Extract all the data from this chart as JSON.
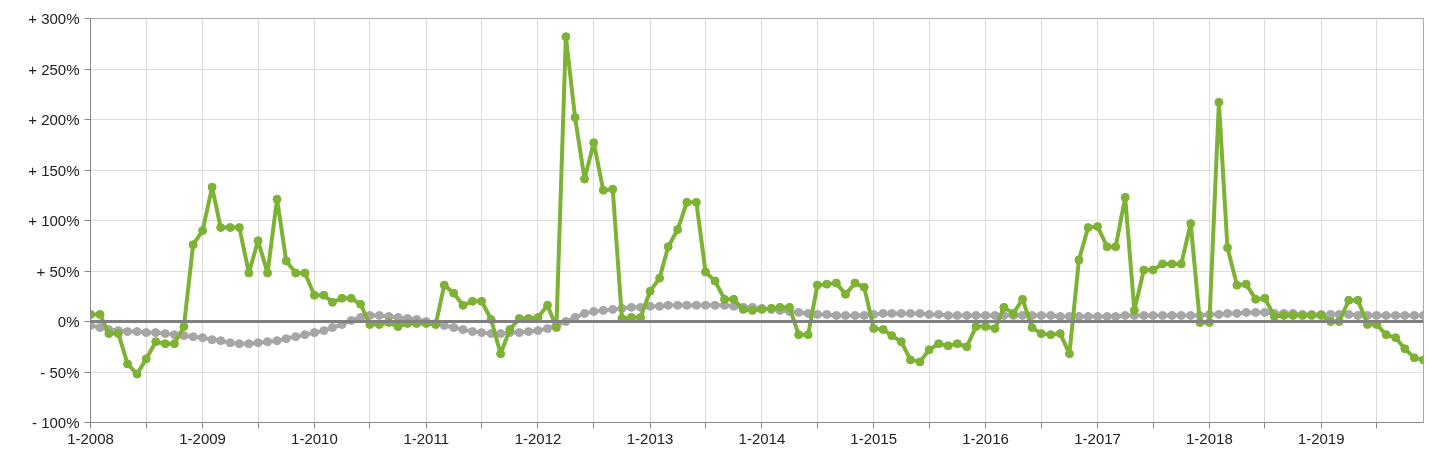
{
  "chart_data": {
    "type": "line",
    "x": [
      "2008-01",
      "2008-02",
      "2008-03",
      "2008-04",
      "2008-05",
      "2008-06",
      "2008-07",
      "2008-08",
      "2008-09",
      "2008-10",
      "2008-11",
      "2008-12",
      "2009-01",
      "2009-02",
      "2009-03",
      "2009-04",
      "2009-05",
      "2009-06",
      "2009-07",
      "2009-08",
      "2009-09",
      "2009-10",
      "2009-11",
      "2009-12",
      "2010-01",
      "2010-02",
      "2010-03",
      "2010-04",
      "2010-05",
      "2010-06",
      "2010-07",
      "2010-08",
      "2010-09",
      "2010-10",
      "2010-11",
      "2010-12",
      "2011-01",
      "2011-02",
      "2011-03",
      "2011-04",
      "2011-05",
      "2011-06",
      "2011-07",
      "2011-08",
      "2011-09",
      "2011-10",
      "2011-11",
      "2011-12",
      "2012-01",
      "2012-02",
      "2012-03",
      "2012-04",
      "2012-05",
      "2012-06",
      "2012-07",
      "2012-08",
      "2012-09",
      "2012-10",
      "2012-11",
      "2012-12",
      "2013-01",
      "2013-02",
      "2013-03",
      "2013-04",
      "2013-05",
      "2013-06",
      "2013-07",
      "2013-08",
      "2013-09",
      "2013-10",
      "2013-11",
      "2013-12",
      "2014-01",
      "2014-02",
      "2014-03",
      "2014-04",
      "2014-05",
      "2014-06",
      "2014-07",
      "2014-08",
      "2014-09",
      "2014-10",
      "2014-11",
      "2014-12",
      "2015-01",
      "2015-02",
      "2015-03",
      "2015-04",
      "2015-05",
      "2015-06",
      "2015-07",
      "2015-08",
      "2015-09",
      "2015-10",
      "2015-11",
      "2015-12",
      "2016-01",
      "2016-02",
      "2016-03",
      "2016-04",
      "2016-05",
      "2016-06",
      "2016-07",
      "2016-08",
      "2016-09",
      "2016-10",
      "2016-11",
      "2016-12",
      "2017-01",
      "2017-02",
      "2017-03",
      "2017-04",
      "2017-05",
      "2017-06",
      "2017-07",
      "2017-08",
      "2017-09",
      "2017-10",
      "2017-11",
      "2017-12",
      "2018-01",
      "2018-02",
      "2018-03",
      "2018-04",
      "2018-05",
      "2018-06",
      "2018-07",
      "2018-08",
      "2018-09",
      "2018-10",
      "2018-11",
      "2018-12",
      "2019-01",
      "2019-02",
      "2019-03",
      "2019-04",
      "2019-05",
      "2019-06",
      "2019-07",
      "2019-08",
      "2019-09",
      "2019-10",
      "2019-11",
      "2019-12"
    ],
    "series": [
      {
        "color": "#a6a6a6",
        "values": [
          -4,
          -6,
          -8,
          -9,
          -10,
          -10,
          -11,
          -11,
          -12,
          -13,
          -14,
          -15,
          -16,
          -18,
          -19,
          -21,
          -22,
          -22,
          -21,
          -20,
          -19,
          -17,
          -15,
          -13,
          -11,
          -9,
          -6,
          -3,
          1,
          4,
          6,
          6,
          5,
          4,
          3,
          2,
          0,
          -2,
          -4,
          -6,
          -8,
          -10,
          -11,
          -12,
          -12,
          -11,
          -11,
          -10,
          -9,
          -7,
          -4,
          0,
          4,
          8,
          10,
          11,
          12,
          13,
          14,
          14,
          15,
          15,
          16,
          16,
          16,
          16,
          16,
          16,
          16,
          15,
          14,
          14,
          13,
          12,
          11,
          10,
          9,
          8,
          7,
          7,
          6,
          6,
          6,
          6,
          7,
          8,
          8,
          8,
          8,
          8,
          7,
          7,
          6,
          6,
          6,
          6,
          6,
          6,
          6,
          6,
          6,
          6,
          6,
          6,
          5,
          5,
          5,
          5,
          5,
          5,
          5,
          6,
          6,
          6,
          6,
          6,
          6,
          6,
          6,
          6,
          7,
          7,
          8,
          8,
          9,
          9,
          9,
          8,
          8,
          8,
          7,
          7,
          7,
          7,
          7,
          7,
          6,
          6,
          6,
          6,
          6,
          6,
          6,
          6
        ]
      },
      {
        "color": "#7db234",
        "values": [
          7,
          7,
          -12,
          -12,
          -42,
          -52,
          -37,
          -20,
          -22,
          -22,
          -5,
          76,
          90,
          133,
          93,
          93,
          93,
          48,
          80,
          48,
          121,
          60,
          48,
          48,
          26,
          26,
          19,
          23,
          23,
          17,
          -3,
          -3,
          -1,
          -5,
          -2,
          -2,
          -2,
          -3,
          36,
          28,
          16,
          20,
          20,
          2,
          -32,
          -8,
          3,
          3,
          4,
          16,
          -6,
          282,
          202,
          141,
          177,
          130,
          131,
          3,
          4,
          4,
          30,
          43,
          74,
          91,
          118,
          118,
          49,
          40,
          22,
          22,
          12,
          11,
          12,
          13,
          14,
          14,
          -13,
          -13,
          36,
          37,
          38,
          27,
          38,
          34,
          -7,
          -8,
          -14,
          -20,
          -38,
          -40,
          -28,
          -22,
          -24,
          -22,
          -25,
          -5,
          -5,
          -7,
          14,
          8,
          22,
          -6,
          -12,
          -13,
          -12,
          -32,
          61,
          93,
          94,
          74,
          74,
          123,
          11,
          51,
          51,
          57,
          57,
          57,
          97,
          -1,
          -1,
          217,
          73,
          36,
          37,
          22,
          23,
          5,
          6,
          6,
          6,
          6,
          6,
          0,
          0,
          21,
          21,
          -3,
          -3,
          -13,
          -16,
          -27,
          -36,
          -38
        ]
      }
    ],
    "xlim": [
      "2008-01",
      "2019-12"
    ],
    "xticks": [
      {
        "value": "2008-01",
        "label": "1-2008"
      },
      {
        "value": "2008-07",
        "label": null
      },
      {
        "value": "2009-01",
        "label": "1-2009"
      },
      {
        "value": "2009-07",
        "label": null
      },
      {
        "value": "2010-01",
        "label": "1-2010"
      },
      {
        "value": "2010-07",
        "label": null
      },
      {
        "value": "2011-01",
        "label": "1-2011"
      },
      {
        "value": "2011-07",
        "label": null
      },
      {
        "value": "2012-01",
        "label": "1-2012"
      },
      {
        "value": "2012-07",
        "label": null
      },
      {
        "value": "2013-01",
        "label": "1-2013"
      },
      {
        "value": "2013-07",
        "label": null
      },
      {
        "value": "2014-01",
        "label": "1-2014"
      },
      {
        "value": "2014-07",
        "label": null
      },
      {
        "value": "2015-01",
        "label": "1-2015"
      },
      {
        "value": "2015-07",
        "label": null
      },
      {
        "value": "2016-01",
        "label": "1-2016"
      },
      {
        "value": "2016-07",
        "label": null
      },
      {
        "value": "2017-01",
        "label": "1-2017"
      },
      {
        "value": "2017-07",
        "label": null
      },
      {
        "value": "2018-01",
        "label": "1-2018"
      },
      {
        "value": "2018-07",
        "label": null
      },
      {
        "value": "2019-01",
        "label": "1-2019"
      },
      {
        "value": "2019-07",
        "label": null
      }
    ],
    "ylim": [
      -100,
      300
    ],
    "yticks": [
      {
        "value": -100,
        "label": "- 100%"
      },
      {
        "value": -50,
        "label": "- 50%"
      },
      {
        "value": 0,
        "label": "0%"
      },
      {
        "value": 50,
        "label": "+ 50%"
      },
      {
        "value": 100,
        "label": "+ 100%"
      },
      {
        "value": 150,
        "label": "+ 150%"
      },
      {
        "value": 200,
        "label": "+ 200%"
      },
      {
        "value": 250,
        "label": "+ 250%"
      },
      {
        "value": 300,
        "label": "+ 300%"
      }
    ],
    "ref_lines": [
      {
        "axis": "y",
        "value": 0,
        "color": "#808080"
      }
    ],
    "grid": true,
    "marker": "circle",
    "line_style": "solid"
  }
}
